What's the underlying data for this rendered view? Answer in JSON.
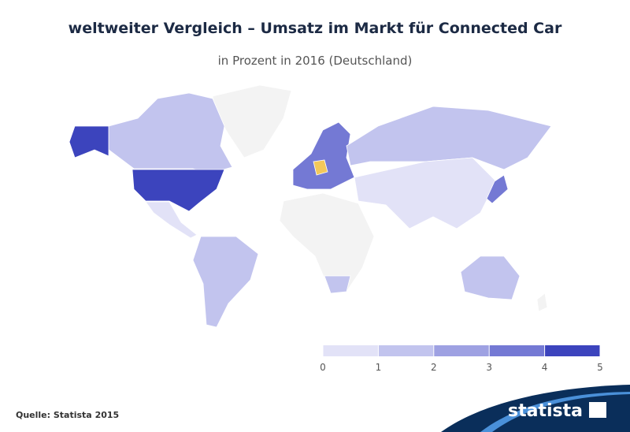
{
  "chart_data": {
    "type": "choropleth",
    "title": "weltweiter Vergleich – Umsatz im Markt für Connected Car",
    "subtitle": "in Prozent in 2016 (Deutschland)",
    "colorbar": {
      "lim": [
        0,
        5
      ],
      "ticks": [
        0,
        1,
        2,
        3,
        4,
        5
      ],
      "colors": [
        "#e2e2f7",
        "#c2c4ee",
        "#9ea1e2",
        "#7479d4",
        "#3c44bd"
      ]
    }
  },
  "footer": {
    "source": "Quelle: Statista 2015",
    "logo": "statista"
  }
}
